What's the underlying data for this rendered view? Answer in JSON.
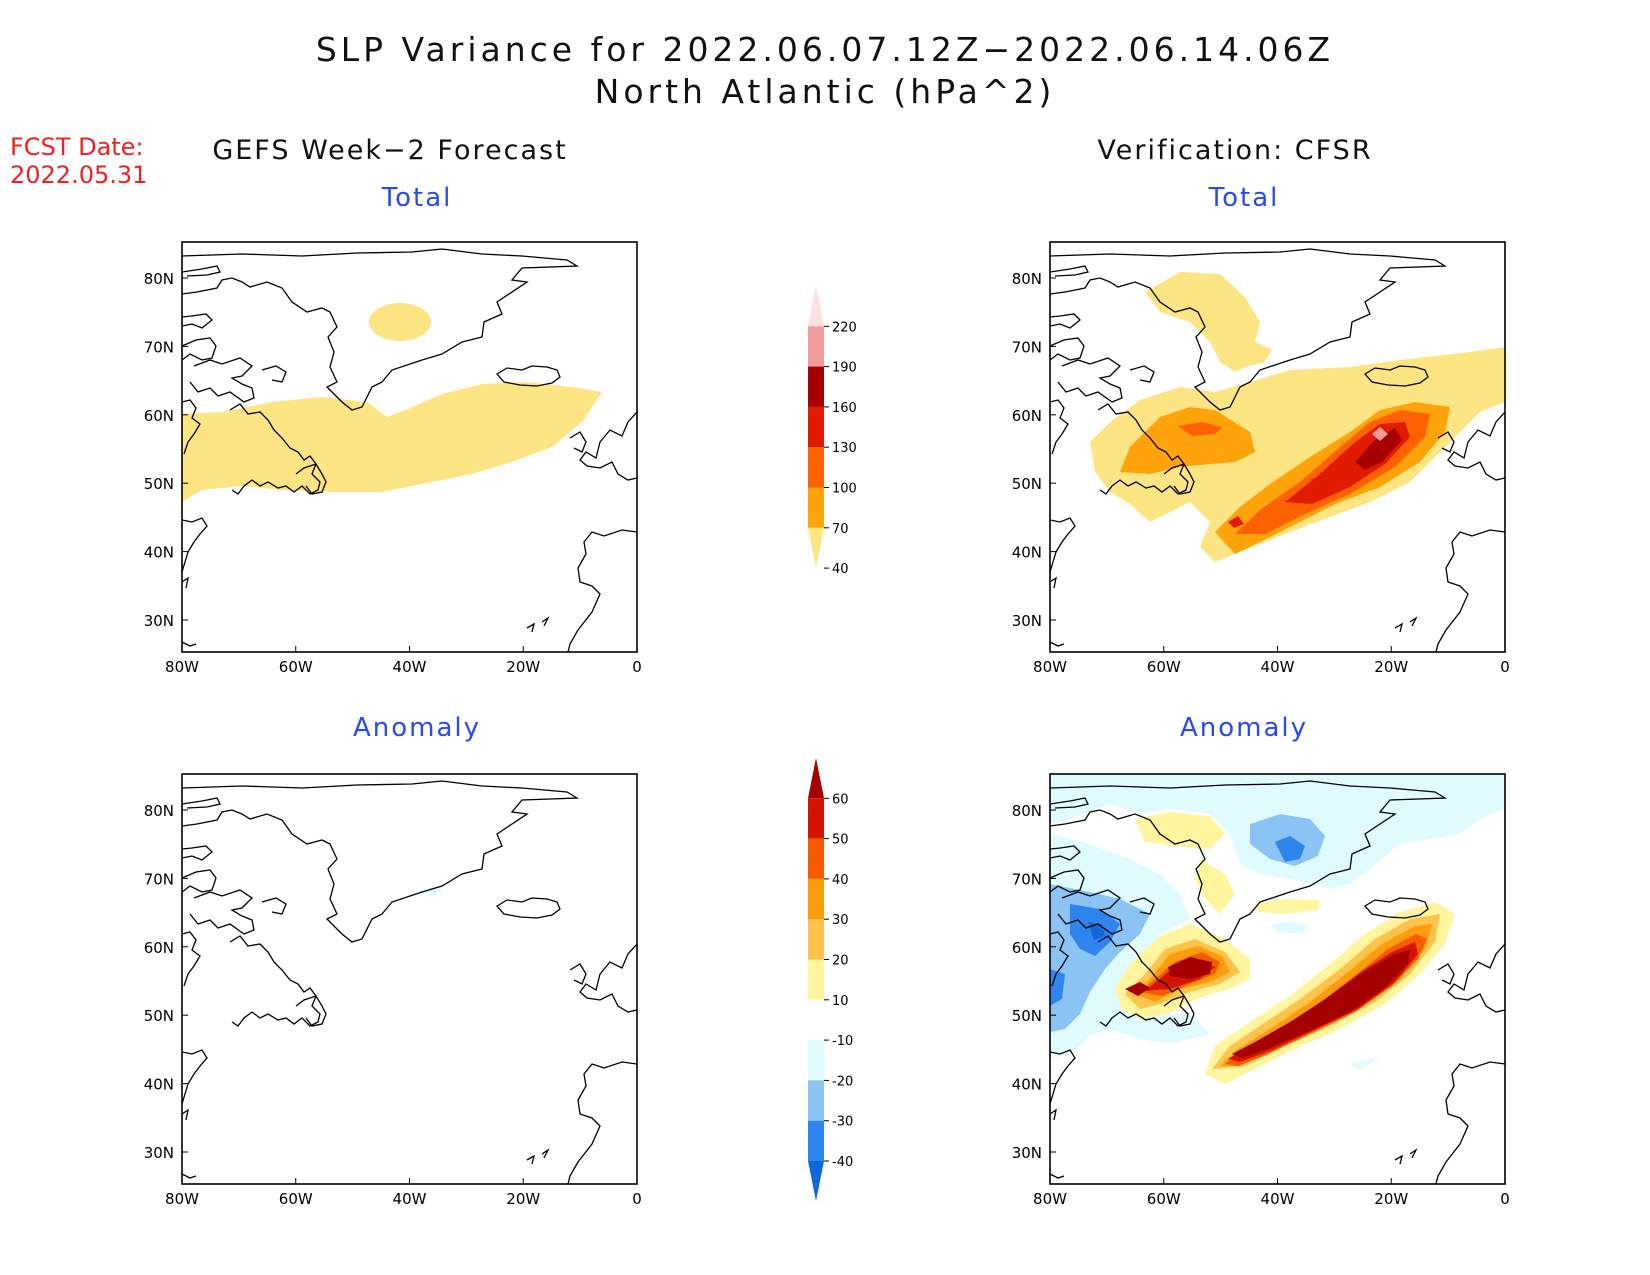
{
  "title": {
    "line1": "SLP Variance for 2022.06.07.12Z−2022.06.14.06Z",
    "line2": "North Atlantic (hPa^2)"
  },
  "forecast": {
    "label": "FCST Date:",
    "date": "2022.05.31"
  },
  "columns": {
    "left": "GEFS Week−2 Forecast",
    "right": "Verification: CFSR"
  },
  "panel_titles": {
    "top": "Total",
    "bottom": "Anomaly"
  },
  "axes": {
    "lon_ticks": [
      "80W",
      "60W",
      "40W",
      "20W",
      "0"
    ],
    "lat_ticks": [
      "80N",
      "70N",
      "60N",
      "50N",
      "40N",
      "30N"
    ]
  },
  "colorbars": {
    "total": {
      "levels": [
        "40",
        "70",
        "100",
        "130",
        "160",
        "190",
        "220"
      ],
      "colors": [
        "#fee584",
        "#fea30a",
        "#fe6100",
        "#e01b00",
        "#a60000",
        "#f19c9c",
        "#fde0de"
      ]
    },
    "anomaly": {
      "levels": [
        "-40",
        "-30",
        "-20",
        "-10",
        "10",
        "20",
        "30",
        "40",
        "50",
        "60"
      ],
      "colors": [
        "#1166d9",
        "#2f85ee",
        "#8cc3f5",
        "#e0fbfd",
        "#ffffff",
        "#fff59e",
        "#fec34a",
        "#fe9c0e",
        "#f65b00",
        "#d51400",
        "#a40000"
      ]
    }
  },
  "map_colors": {
    "t1": "#fee584",
    "t2": "#fea30a",
    "t3": "#fe6100",
    "t4": "#e01b00",
    "t5": "#a60000",
    "t6": "#f19c9c",
    "a_pos1": "#fff59e",
    "a_pos2": "#fec34a",
    "a_pos3": "#fe9c0e",
    "a_pos4": "#f65b00",
    "a_pos5": "#d51400",
    "a_pos6": "#a40000",
    "a_neg1": "#e0fbfd",
    "a_neg2": "#8cc3f5",
    "a_neg3": "#2f85ee",
    "a_neg4": "#1166d9"
  }
}
